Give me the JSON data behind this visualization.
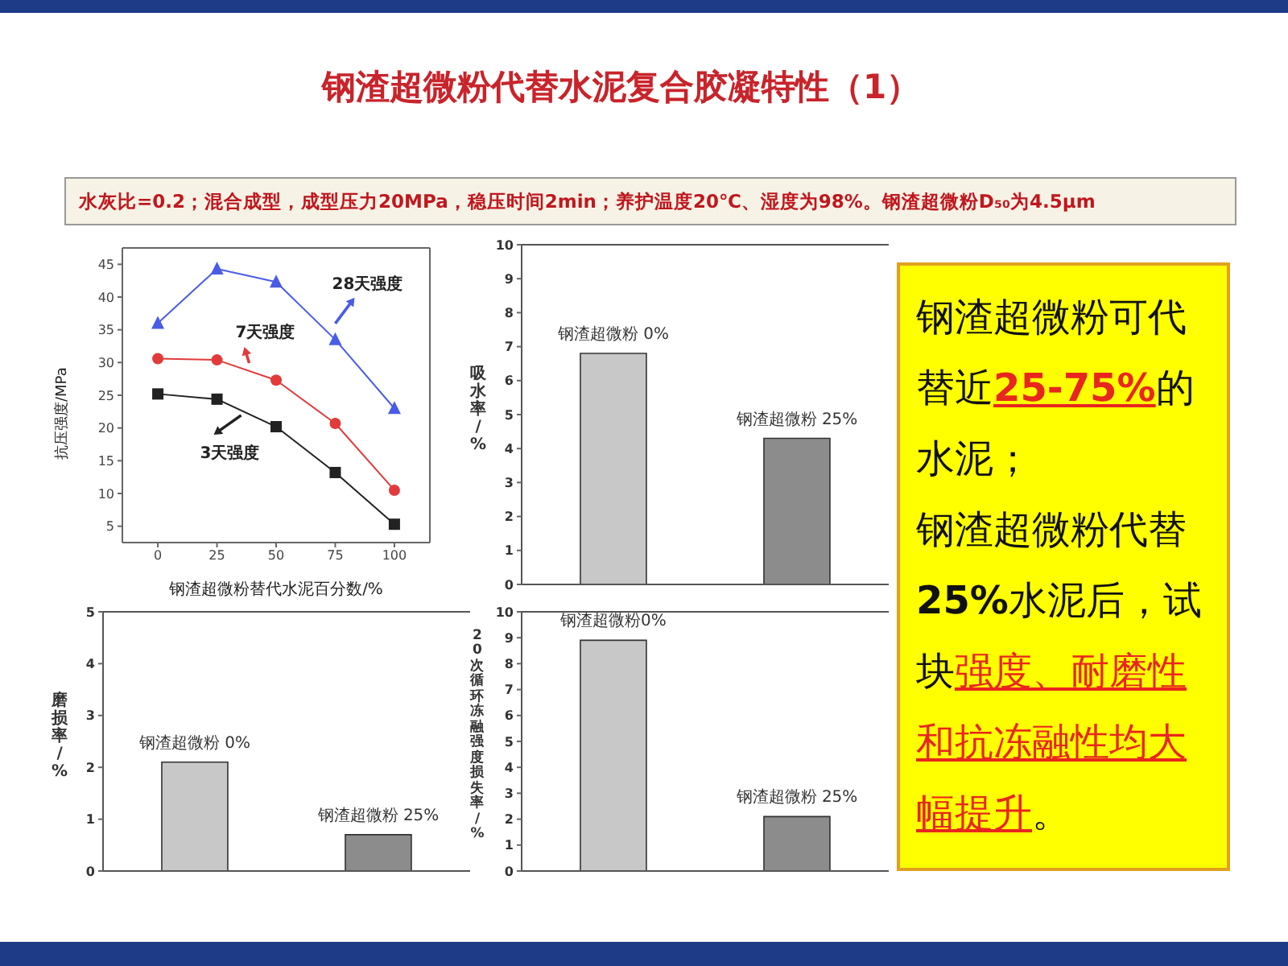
{
  "chart_data": [
    {
      "type": "line",
      "title": "钢渣超微粉代替水泥复合胶凝特性（1）",
      "subtitle": "水灰比=0.2；混合成型，成型压力20MPa，稳压时间2min；养护温度20℃、湿度为98%。钢渣超微粉D₅₀为4.5μm",
      "xlabel": "钢渣超微粉替代水泥百分数/%",
      "ylabel": "抗压强度/MPa",
      "x": [
        0,
        25,
        50,
        75,
        100
      ],
      "series": [
        {
          "name": "28天强度",
          "color": "#4a5ce6",
          "marker": "triangle",
          "values": [
            36,
            44.3,
            42.3,
            33.5,
            23
          ]
        },
        {
          "name": "7天强度",
          "color": "#e23b3b",
          "marker": "circle",
          "values": [
            30.6,
            30.4,
            27.3,
            20.7,
            10.5
          ]
        },
        {
          "name": "3天强度",
          "color": "#222222",
          "marker": "square",
          "values": [
            25.2,
            24.4,
            20.2,
            13.2,
            5.3
          ]
        }
      ],
      "xlim": [
        -15,
        115
      ],
      "xticks": [
        0,
        25,
        50,
        75,
        100
      ],
      "ylim": [
        2.5,
        47.5
      ],
      "yticks": [
        5,
        10,
        15,
        20,
        25,
        30,
        35,
        40,
        45
      ]
    },
    {
      "type": "bar",
      "ylabel": "吸水率/%",
      "categories": [
        "钢渣超微粉 0%",
        "钢渣超微粉 25%"
      ],
      "values": [
        6.8,
        4.3
      ],
      "colors": [
        "#c8c8c8",
        "#8c8c8c"
      ],
      "ylim": [
        0,
        10
      ],
      "yticks": [
        0,
        1,
        2,
        3,
        4,
        5,
        6,
        7,
        8,
        9,
        10
      ]
    },
    {
      "type": "bar",
      "ylabel": "磨损率/%",
      "categories": [
        "钢渣超微粉 0%",
        "钢渣超微粉 25%"
      ],
      "values": [
        2.1,
        0.7
      ],
      "colors": [
        "#c8c8c8",
        "#8c8c8c"
      ],
      "ylim": [
        0,
        5
      ],
      "yticks": [
        0,
        1,
        2,
        3,
        4,
        5
      ]
    },
    {
      "type": "bar",
      "ylabel": "20次循环冻融强度损失率/%",
      "categories": [
        "钢渣超微粉0%",
        "钢渣超微粉 25%"
      ],
      "values": [
        8.9,
        2.1
      ],
      "colors": [
        "#c8c8c8",
        "#8c8c8c"
      ],
      "ylim": [
        0,
        10
      ],
      "yticks": [
        0,
        1,
        2,
        3,
        4,
        5,
        6,
        7,
        8,
        9,
        10
      ]
    },
    {
      "type": "other",
      "annotations": [
        "钢渣超微粉可代替近",
        "25-75%",
        "的水泥；",
        "钢渣超微粉代替",
        "25%",
        "水泥后，试块",
        "强度、耐磨性和抗冻融性均大幅提升",
        "。"
      ]
    }
  ]
}
